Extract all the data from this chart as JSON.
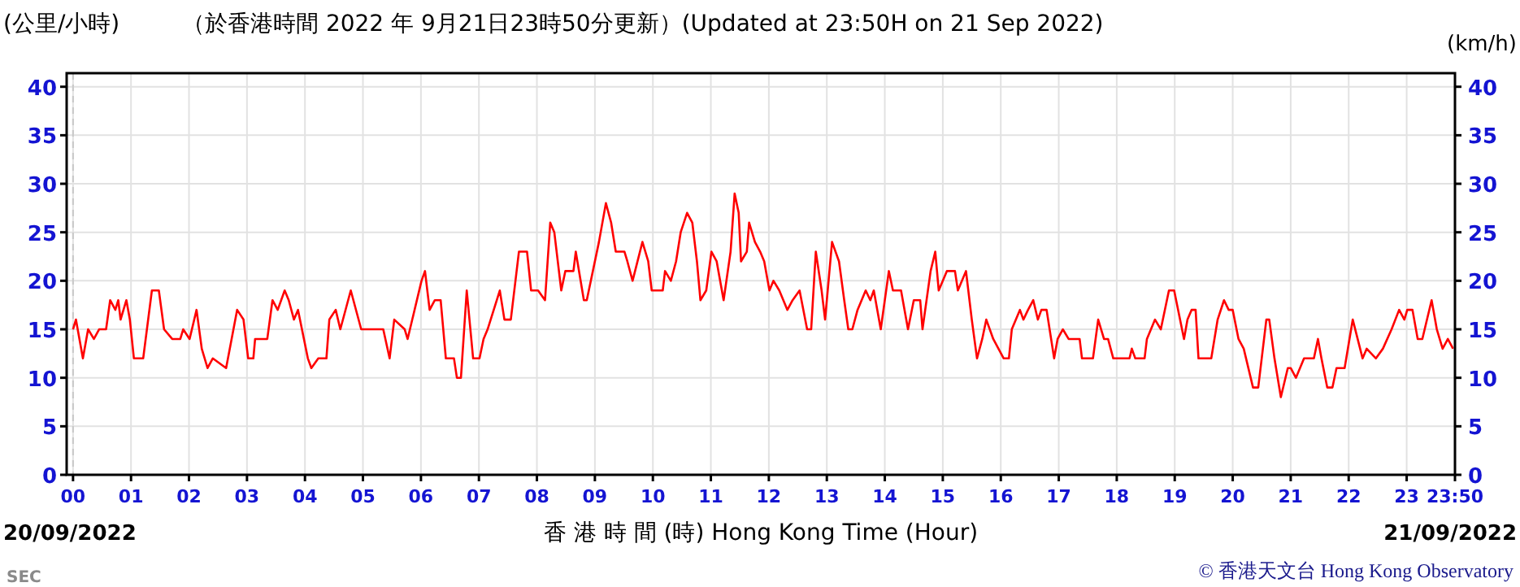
{
  "chart_data": {
    "type": "line",
    "title": "（於香港時間 2022 年 9月21日23時50分更新）(Updated at 23:50H on 21 Sep 2022)",
    "ylabel": "(公里/小時)",
    "y2label": "(km/h)",
    "xlabel": "香 港 時 間 (時)  Hong Kong Time (Hour)",
    "annotations": [
      "20/09/2022",
      "21/09/2022",
      "SEC",
      "© 香港天文台 Hong Kong Observatory"
    ],
    "xlim": [
      -0.11,
      23.833
    ],
    "ylim": [
      0,
      41.4
    ],
    "y2lim": [
      0,
      41.4
    ],
    "xticks": [
      {
        "value": 0,
        "label": "00"
      },
      {
        "value": 1,
        "label": "01"
      },
      {
        "value": 2,
        "label": "02"
      },
      {
        "value": 3,
        "label": "03"
      },
      {
        "value": 4,
        "label": "04"
      },
      {
        "value": 5,
        "label": "05"
      },
      {
        "value": 6,
        "label": "06"
      },
      {
        "value": 7,
        "label": "07"
      },
      {
        "value": 8,
        "label": "08"
      },
      {
        "value": 9,
        "label": "09"
      },
      {
        "value": 10,
        "label": "10"
      },
      {
        "value": 11,
        "label": "11"
      },
      {
        "value": 12,
        "label": "12"
      },
      {
        "value": 13,
        "label": "13"
      },
      {
        "value": 14,
        "label": "14"
      },
      {
        "value": 15,
        "label": "15"
      },
      {
        "value": 16,
        "label": "16"
      },
      {
        "value": 17,
        "label": "17"
      },
      {
        "value": 18,
        "label": "18"
      },
      {
        "value": 19,
        "label": "19"
      },
      {
        "value": 20,
        "label": "20"
      },
      {
        "value": 21,
        "label": "21"
      },
      {
        "value": 22,
        "label": "22"
      },
      {
        "value": 23,
        "label": "23"
      },
      {
        "value": 23.833,
        "label": "23:50"
      }
    ],
    "yticks": [
      0,
      5,
      10,
      15,
      20,
      25,
      30,
      35,
      40
    ],
    "y2ticks": [
      0,
      5,
      10,
      15,
      20,
      25,
      30,
      35,
      40
    ],
    "grid": true,
    "ref_lines": [
      {
        "axis": "x",
        "value": 0,
        "label": null,
        "color": "#c8c8c8",
        "line_style": "dashed"
      }
    ],
    "series": [
      {
        "color": "#ff0000",
        "x": [
          0,
          0.05,
          0.17,
          0.26,
          0.36,
          0.45,
          0.57,
          0.64,
          0.73,
          0.78,
          0.82,
          0.92,
          0.98,
          1.05,
          1.21,
          1.36,
          1.48,
          1.57,
          1.71,
          1.85,
          1.9,
          2.01,
          2.13,
          2.22,
          2.32,
          2.41,
          2.64,
          2.83,
          2.94,
          3.02,
          3.11,
          3.14,
          3.35,
          3.44,
          3.53,
          3.65,
          3.72,
          3.81,
          3.88,
          4.05,
          4.11,
          4.23,
          4.37,
          4.42,
          4.53,
          4.61,
          4.79,
          4.97,
          5.35,
          5.46,
          5.54,
          5.72,
          5.77,
          6.01,
          6.07,
          6.15,
          6.24,
          6.34,
          6.43,
          6.57,
          6.62,
          6.69,
          6.79,
          6.9,
          7.01,
          7.08,
          7.15,
          7.36,
          7.44,
          7.55,
          7.69,
          7.83,
          7.9,
          8.02,
          8.14,
          8.23,
          8.3,
          8.42,
          8.49,
          8.63,
          8.67,
          8.81,
          8.86,
          9.07,
          9.19,
          9.28,
          9.36,
          9.51,
          9.56,
          9.65,
          9.82,
          9.92,
          9.98,
          10.17,
          10.21,
          10.31,
          10.4,
          10.48,
          10.59,
          10.68,
          10.76,
          10.82,
          10.92,
          11.01,
          11.1,
          11.22,
          11.34,
          11.41,
          11.48,
          11.52,
          11.62,
          11.66,
          11.76,
          11.85,
          11.92,
          12.01,
          12.08,
          12.18,
          12.32,
          12.41,
          12.53,
          12.66,
          12.73,
          12.81,
          12.91,
          12.97,
          13.09,
          13.21,
          13.3,
          13.37,
          13.44,
          13.53,
          13.67,
          13.75,
          13.81,
          13.93,
          14.07,
          14.14,
          14.28,
          14.4,
          14.5,
          14.61,
          14.65,
          14.79,
          14.87,
          14.93,
          15.07,
          15.21,
          15.26,
          15.4,
          15.5,
          15.59,
          15.68,
          15.75,
          15.87,
          16.05,
          16.14,
          16.19,
          16.33,
          16.39,
          16.47,
          16.56,
          16.64,
          16.7,
          16.79,
          16.92,
          16.98,
          17.07,
          17.17,
          17.36,
          17.4,
          17.59,
          17.68,
          17.78,
          17.85,
          17.94,
          18.22,
          18.26,
          18.32,
          18.48,
          18.52,
          18.66,
          18.76,
          18.9,
          18.99,
          19.16,
          19.22,
          19.29,
          19.36,
          19.41,
          19.63,
          19.74,
          19.85,
          19.93,
          20.0,
          20.1,
          20.19,
          20.35,
          20.44,
          20.58,
          20.63,
          20.72,
          20.83,
          20.95,
          21.0,
          21.09,
          21.23,
          21.4,
          21.47,
          21.53,
          21.63,
          21.72,
          21.79,
          21.93,
          22.07,
          22.24,
          22.31,
          22.47,
          22.59,
          22.74,
          22.87,
          22.96,
          23.01,
          23.1,
          23.19,
          23.27,
          23.43,
          23.52,
          23.62,
          23.71,
          23.8
        ],
        "values": [
          15,
          16,
          12,
          15,
          14,
          15,
          15,
          18,
          17,
          18,
          16,
          18,
          16,
          12,
          12,
          19,
          19,
          15,
          14,
          14,
          15,
          14,
          17,
          13,
          11,
          12,
          11,
          17,
          16,
          12,
          12,
          14,
          14,
          18,
          17,
          19,
          18,
          16,
          17,
          12,
          11,
          12,
          12,
          16,
          17,
          15,
          19,
          15,
          15,
          12,
          16,
          15,
          14,
          20,
          21,
          17,
          18,
          18,
          12,
          12,
          10,
          10,
          19,
          12,
          12,
          14,
          15,
          19,
          16,
          16,
          23,
          23,
          19,
          19,
          18,
          26,
          25,
          19,
          21,
          21,
          23,
          18,
          18,
          24,
          28,
          26,
          23,
          23,
          22,
          20,
          24,
          22,
          19,
          19,
          21,
          20,
          22,
          25,
          27,
          26,
          22,
          18,
          19,
          23,
          22,
          18,
          23,
          29,
          27,
          22,
          23,
          26,
          24,
          23,
          22,
          19,
          20,
          19,
          17,
          18,
          19,
          15,
          15,
          23,
          19,
          16,
          24,
          22,
          18,
          15,
          15,
          17,
          19,
          18,
          19,
          15,
          21,
          19,
          19,
          15,
          18,
          18,
          15,
          21,
          23,
          19,
          21,
          21,
          19,
          21,
          16,
          12,
          14,
          16,
          14,
          12,
          12,
          15,
          17,
          16,
          17,
          18,
          16,
          17,
          17,
          12,
          14,
          15,
          14,
          14,
          12,
          12,
          16,
          14,
          14,
          12,
          12,
          13,
          12,
          12,
          14,
          16,
          15,
          19,
          19,
          14,
          16,
          17,
          17,
          12,
          12,
          16,
          18,
          17,
          17,
          14,
          13,
          9,
          9,
          16,
          16,
          12,
          8,
          11,
          11,
          10,
          12,
          12,
          14,
          12,
          9,
          9,
          11,
          11,
          16,
          12,
          13,
          12,
          13,
          15,
          17,
          16,
          17,
          17,
          14,
          14,
          18,
          15,
          13,
          14,
          13
        ]
      }
    ]
  }
}
